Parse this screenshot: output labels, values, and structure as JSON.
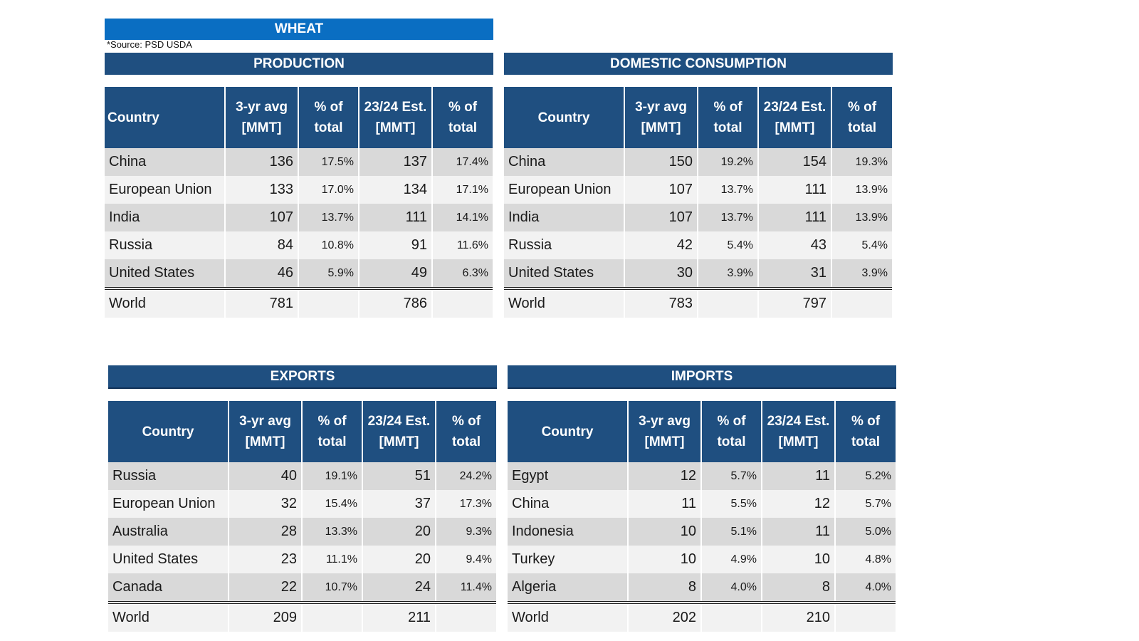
{
  "title": "WHEAT",
  "source_note": "*Source: PSD USDA",
  "columns": [
    "Country",
    "3-yr avg [MMT]",
    "% of total",
    "23/24 Est. [MMT]",
    "% of total"
  ],
  "panels": {
    "production": {
      "title": "PRODUCTION",
      "rows": [
        [
          "China",
          "136",
          "17.5%",
          "137",
          "17.4%"
        ],
        [
          "European Union",
          "133",
          "17.0%",
          "134",
          "17.1%"
        ],
        [
          "India",
          "107",
          "13.7%",
          "111",
          "14.1%"
        ],
        [
          "Russia",
          "84",
          "10.8%",
          "91",
          "11.6%"
        ],
        [
          "United States",
          "46",
          "5.9%",
          "49",
          "6.3%"
        ]
      ],
      "world": [
        "World",
        "781",
        "",
        "786",
        ""
      ]
    },
    "consumption": {
      "title": "DOMESTIC CONSUMPTION",
      "rows": [
        [
          "China",
          "150",
          "19.2%",
          "154",
          "19.3%"
        ],
        [
          "European Union",
          "107",
          "13.7%",
          "111",
          "13.9%"
        ],
        [
          "India",
          "107",
          "13.7%",
          "111",
          "13.9%"
        ],
        [
          "Russia",
          "42",
          "5.4%",
          "43",
          "5.4%"
        ],
        [
          "United States",
          "30",
          "3.9%",
          "31",
          "3.9%"
        ]
      ],
      "world": [
        "World",
        "783",
        "",
        "797",
        ""
      ]
    },
    "exports": {
      "title": "EXPORTS",
      "rows": [
        [
          "Russia",
          "40",
          "19.1%",
          "51",
          "24.2%"
        ],
        [
          "European Union",
          "32",
          "15.4%",
          "37",
          "17.3%"
        ],
        [
          "Australia",
          "28",
          "13.3%",
          "20",
          "9.3%"
        ],
        [
          "United States",
          "23",
          "11.1%",
          "20",
          "9.4%"
        ],
        [
          "Canada",
          "22",
          "10.7%",
          "24",
          "11.4%"
        ]
      ],
      "world": [
        "World",
        "209",
        "",
        "211",
        ""
      ]
    },
    "imports": {
      "title": "IMPORTS",
      "rows": [
        [
          "Egypt",
          "12",
          "5.7%",
          "11",
          "5.2%"
        ],
        [
          "China",
          "11",
          "5.5%",
          "12",
          "5.7%"
        ],
        [
          "Indonesia",
          "10",
          "5.1%",
          "11",
          "5.0%"
        ],
        [
          "Turkey",
          "10",
          "4.9%",
          "10",
          "4.8%"
        ],
        [
          "Algeria",
          "8",
          "4.0%",
          "8",
          "4.0%"
        ]
      ],
      "world": [
        "World",
        "202",
        "",
        "210",
        ""
      ]
    }
  },
  "colors": {
    "title_bar": "#0a6ec2",
    "header": "#1f4f80",
    "row_dark": "#d9d9d9",
    "row_light": "#f2f2f2"
  }
}
